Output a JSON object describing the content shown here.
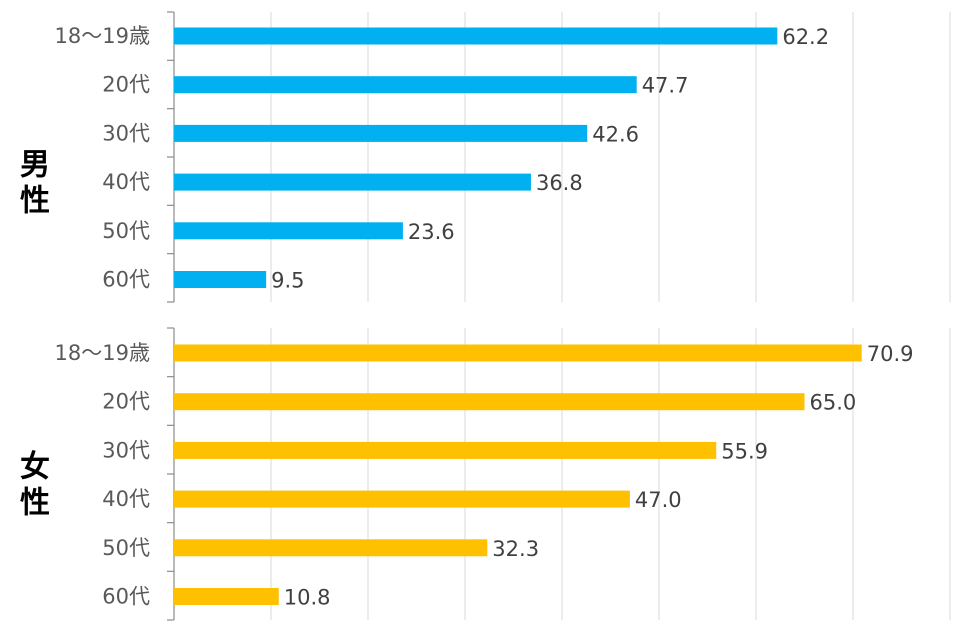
{
  "chart_data": {
    "type": "bar",
    "orientation": "horizontal",
    "title": "",
    "xlabel": "",
    "ylabel": "",
    "xlim": [
      0,
      80
    ],
    "grid": true,
    "categories": [
      "18〜19歳",
      "20代",
      "30代",
      "40代",
      "50代",
      "60代"
    ],
    "series": [
      {
        "name": "男性",
        "label_chars": [
          "男",
          "性"
        ],
        "color": "#00B0F0",
        "values": [
          62.2,
          47.7,
          42.6,
          36.8,
          23.6,
          9.5
        ],
        "value_labels": [
          "62.2",
          "47.7",
          "42.6",
          "36.8",
          "23.6",
          "9.5"
        ]
      },
      {
        "name": "女性",
        "label_chars": [
          "女",
          "性"
        ],
        "color": "#FFC000",
        "values": [
          70.9,
          65.0,
          55.9,
          47.0,
          32.3,
          10.8
        ],
        "value_labels": [
          "70.9",
          "65.0",
          "55.9",
          "47.0",
          "32.3",
          "10.8"
        ]
      }
    ]
  }
}
